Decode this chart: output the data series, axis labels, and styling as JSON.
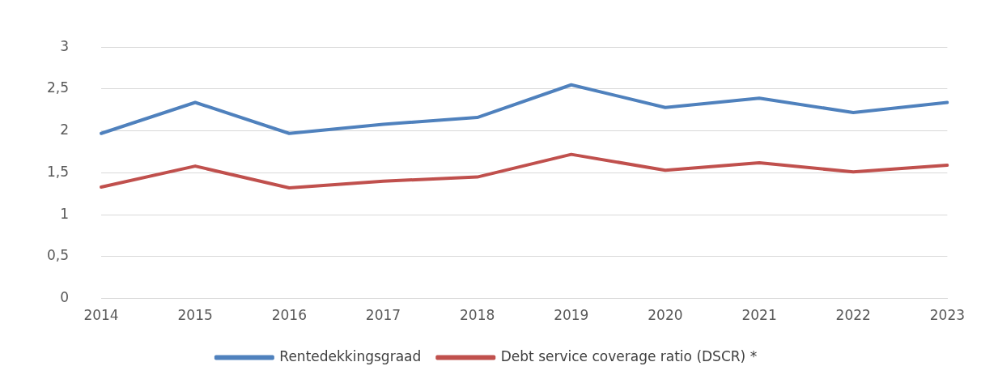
{
  "chart_data": {
    "type": "line",
    "categories": [
      "2014",
      "2015",
      "2016",
      "2017",
      "2018",
      "2019",
      "2020",
      "2021",
      "2022",
      "2023"
    ],
    "series": [
      {
        "name": "Rentedekkingsgraad",
        "color": "#4f81bd",
        "values": [
          1.97,
          2.34,
          1.97,
          2.08,
          2.16,
          2.55,
          2.28,
          2.39,
          2.22,
          2.34
        ]
      },
      {
        "name": "Debt service coverage ratio (DSCR) *",
        "color": "#c0504d",
        "values": [
          1.33,
          1.58,
          1.32,
          1.4,
          1.45,
          1.72,
          1.53,
          1.62,
          1.51,
          1.59
        ]
      }
    ],
    "ylim": [
      0,
      3
    ],
    "yticks": [
      0,
      {
        "value": 0.5,
        "label": "0,5"
      },
      1,
      {
        "value": 1.5,
        "label": "1,5"
      },
      2,
      {
        "value": 2.5,
        "label": "2,5"
      },
      3
    ],
    "grid": "y",
    "legend": "bottom",
    "marker": "none",
    "line_style": "solid"
  }
}
